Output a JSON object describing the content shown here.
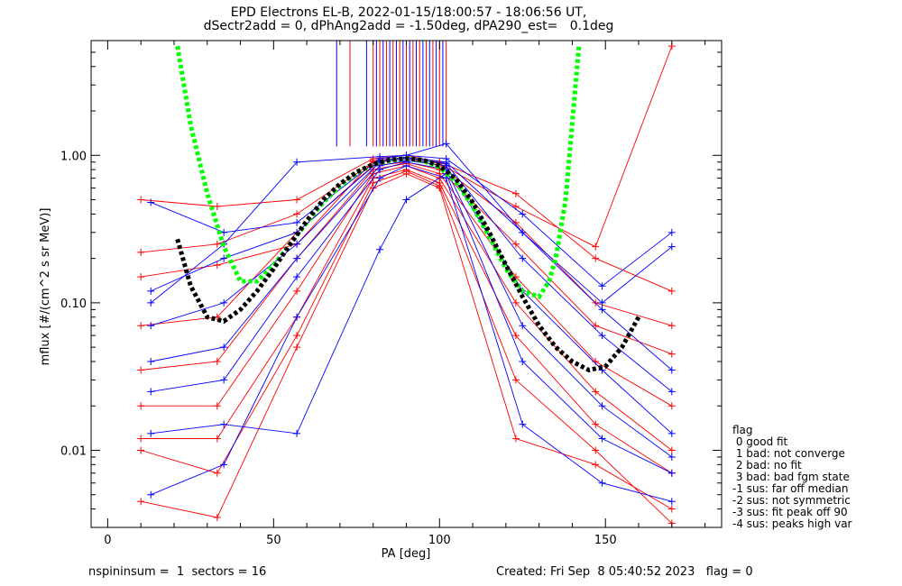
{
  "header": {
    "line1": "EPD Electrons EL-B, 2022-01-15/18:00:57 - 18:06:56 UT,",
    "line2": "dSectr2add = 0, dPhAng2add = -1.50deg, dPA290_est=   0.1deg"
  },
  "legend": {
    "title": "flag",
    "items": [
      " 0 good fit",
      " 1 bad: not converge",
      " 2 bad: no fit",
      " 3 bad: bad fgm state",
      "-1 sus: far off median",
      "-2 sus: not symmetric",
      "-3 sus: fit peak off 90",
      "-4 sus: peaks high var"
    ]
  },
  "footer": {
    "left": "nspininsum =  1  sectors = 16",
    "right": "Created: Fri Sep  8 05:40:52 2023   flag = 0"
  },
  "colors": {
    "series_a": "#ff0000",
    "series_b": "#0000ff",
    "fit_green": "#00ff00",
    "fit_black": "#000000"
  },
  "chart_data": {
    "type": "line",
    "xlabel": "PA [deg]",
    "ylabel": "mflux [#/(cm^2 s sr MeV)]",
    "xlim": [
      -5,
      185
    ],
    "ylim": [
      0.003,
      6
    ],
    "yscale": "log",
    "xticks": [
      "0",
      "50",
      "100",
      "150"
    ],
    "yticks": [
      "0.01",
      "0.10",
      "1.00"
    ],
    "pa_bins": [
      10,
      13,
      33,
      35,
      55,
      57,
      80,
      85,
      90,
      95,
      100,
      102,
      123,
      125,
      147,
      149,
      168,
      170
    ],
    "series": [
      {
        "color": "red",
        "x": [
          10,
          33,
          57,
          80,
          90,
          100,
          123,
          147,
          170
        ],
        "y": [
          0.5,
          0.45,
          0.5,
          0.95,
          1.0,
          0.9,
          0.55,
          0.2,
          0.12
        ]
      },
      {
        "color": "red",
        "x": [
          10,
          33,
          57,
          80,
          90,
          100,
          123,
          147,
          170
        ],
        "y": [
          0.22,
          0.25,
          0.4,
          0.9,
          0.95,
          0.85,
          0.35,
          0.1,
          0.07
        ]
      },
      {
        "color": "red",
        "x": [
          10,
          33,
          57,
          80,
          90,
          100,
          123,
          147,
          170
        ],
        "y": [
          0.07,
          0.08,
          0.3,
          0.85,
          0.9,
          0.8,
          0.25,
          0.07,
          0.045
        ]
      },
      {
        "color": "red",
        "x": [
          10,
          33,
          57,
          80,
          90,
          100,
          123,
          147,
          170
        ],
        "y": [
          0.035,
          0.04,
          0.2,
          0.8,
          0.88,
          0.75,
          0.15,
          0.04,
          0.02
        ]
      },
      {
        "color": "red",
        "x": [
          10,
          33,
          57,
          80,
          90,
          100,
          123,
          147,
          170
        ],
        "y": [
          0.02,
          0.02,
          0.12,
          0.75,
          0.85,
          0.7,
          0.1,
          0.025,
          0.01
        ]
      },
      {
        "color": "red",
        "x": [
          10,
          33,
          57,
          80,
          90,
          100,
          123,
          147,
          170
        ],
        "y": [
          0.012,
          0.012,
          0.08,
          0.7,
          0.8,
          0.65,
          0.06,
          0.015,
          0.007
        ]
      },
      {
        "color": "red",
        "x": [
          10,
          33,
          57,
          80,
          90,
          100,
          123,
          147,
          170
        ],
        "y": [
          0.0045,
          0.0035,
          0.05,
          0.6,
          0.75,
          0.6,
          0.012,
          0.008,
          0.004
        ]
      },
      {
        "color": "red",
        "x": [
          10,
          33,
          57,
          80,
          90,
          100,
          123,
          147,
          170
        ],
        "y": [
          0.15,
          0.18,
          0.25,
          0.92,
          0.97,
          0.88,
          0.45,
          0.24,
          5.5
        ]
      },
      {
        "color": "red",
        "x": [
          10,
          33,
          57,
          80,
          90,
          100,
          123,
          147,
          170
        ],
        "y": [
          0.01,
          0.007,
          0.06,
          0.65,
          0.78,
          0.62,
          0.03,
          0.01,
          0.0032
        ]
      },
      {
        "color": "blue",
        "x": [
          13,
          35,
          57,
          82,
          90,
          102,
          125,
          149,
          170
        ],
        "y": [
          0.48,
          0.3,
          0.35,
          0.95,
          1.0,
          0.95,
          0.4,
          0.13,
          0.3
        ]
      },
      {
        "color": "blue",
        "x": [
          13,
          35,
          57,
          82,
          90,
          102,
          125,
          149,
          170
        ],
        "y": [
          0.12,
          0.2,
          0.3,
          0.92,
          0.97,
          0.9,
          0.3,
          0.09,
          0.035
        ]
      },
      {
        "color": "blue",
        "x": [
          13,
          35,
          57,
          82,
          90,
          102,
          125,
          149,
          170
        ],
        "y": [
          0.07,
          0.1,
          0.25,
          0.9,
          0.95,
          0.88,
          0.2,
          0.06,
          0.025
        ]
      },
      {
        "color": "blue",
        "x": [
          13,
          35,
          57,
          82,
          90,
          102,
          125,
          149,
          170
        ],
        "y": [
          0.04,
          0.05,
          0.2,
          0.85,
          0.92,
          0.85,
          0.12,
          0.035,
          0.013
        ]
      },
      {
        "color": "blue",
        "x": [
          13,
          35,
          57,
          82,
          90,
          102,
          125,
          149,
          170
        ],
        "y": [
          0.025,
          0.03,
          0.15,
          0.8,
          0.9,
          0.8,
          0.07,
          0.02,
          0.009
        ]
      },
      {
        "color": "blue",
        "x": [
          13,
          35,
          57,
          82,
          90,
          102,
          125,
          149,
          170
        ],
        "y": [
          0.013,
          0.015,
          0.013,
          0.23,
          0.5,
          0.75,
          0.04,
          0.012,
          0.007
        ]
      },
      {
        "color": "blue",
        "x": [
          13,
          35,
          57,
          82,
          90,
          102,
          125,
          149,
          170
        ],
        "y": [
          0.005,
          0.008,
          0.08,
          0.7,
          0.85,
          0.7,
          0.015,
          0.006,
          0.0045
        ]
      },
      {
        "color": "blue",
        "x": [
          13,
          35,
          57,
          82,
          90,
          102,
          125,
          149,
          170
        ],
        "y": [
          0.1,
          0.25,
          0.9,
          0.98,
          1.0,
          1.2,
          0.3,
          0.1,
          0.24
        ]
      }
    ],
    "fits": [
      {
        "name": "",
        "color": "green",
        "x": [
          21,
          25,
          30,
          35,
          40,
          45,
          50,
          55,
          60,
          65,
          70,
          75,
          80,
          85,
          90,
          95,
          100,
          105,
          110,
          115,
          120,
          125,
          130,
          133,
          135,
          138,
          142
        ],
        "y": [
          5.5,
          1.6,
          0.55,
          0.24,
          0.14,
          0.14,
          0.18,
          0.25,
          0.35,
          0.48,
          0.62,
          0.76,
          0.87,
          0.92,
          0.95,
          0.92,
          0.83,
          0.66,
          0.45,
          0.28,
          0.17,
          0.12,
          0.11,
          0.14,
          0.2,
          0.5,
          5.5
        ]
      },
      {
        "name": "",
        "color": "black",
        "x": [
          21,
          25,
          30,
          35,
          40,
          45,
          50,
          55,
          60,
          65,
          70,
          75,
          80,
          85,
          90,
          95,
          100,
          105,
          110,
          115,
          120,
          125,
          130,
          135,
          140,
          145,
          150,
          155,
          160
        ],
        "y": [
          0.27,
          0.13,
          0.08,
          0.075,
          0.09,
          0.12,
          0.17,
          0.25,
          0.36,
          0.5,
          0.64,
          0.77,
          0.87,
          0.93,
          0.95,
          0.93,
          0.85,
          0.69,
          0.48,
          0.3,
          0.18,
          0.11,
          0.07,
          0.05,
          0.04,
          0.035,
          0.037,
          0.05,
          0.08
        ]
      }
    ],
    "spikes": {
      "x": [
        69,
        73,
        78,
        80,
        81,
        82,
        83,
        84,
        85,
        86,
        87,
        88,
        89,
        90,
        91,
        92,
        93,
        94,
        95,
        96,
        97,
        98,
        99,
        100,
        101,
        102
      ],
      "y_top": 6,
      "y_bottom": 1.15
    }
  }
}
